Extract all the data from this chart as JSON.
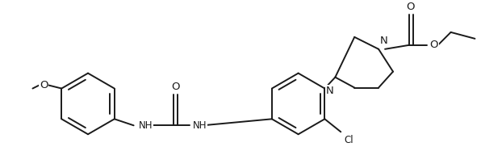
{
  "background_color": "#ffffff",
  "line_color": "#1a1a1a",
  "line_width": 1.4,
  "font_size": 8.5,
  "figsize": [
    5.96,
    2.08
  ],
  "dpi": 100,
  "xlim": [
    0,
    596
  ],
  "ylim": [
    0,
    208
  ]
}
